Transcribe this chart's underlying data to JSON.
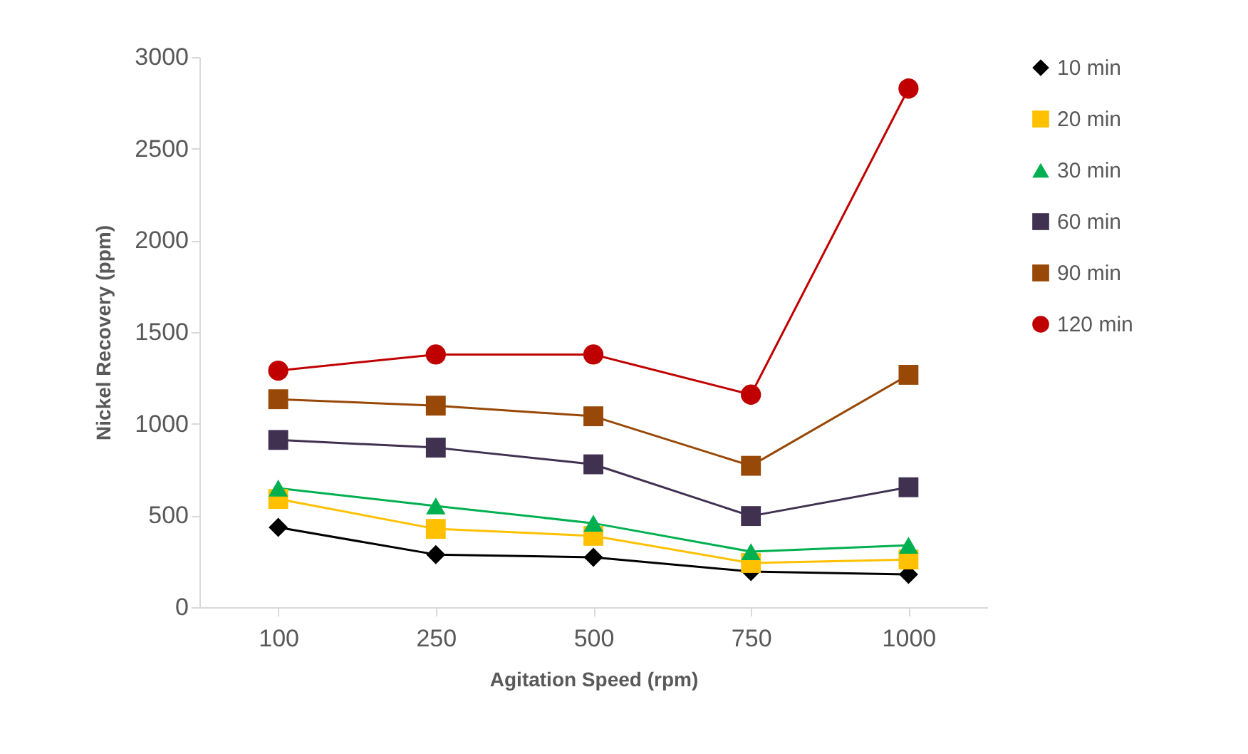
{
  "chart_data": {
    "type": "line",
    "xlabel": "Agitation Speed (rpm)",
    "ylabel": "Nickel Recovery (ppm)",
    "categories": [
      "100",
      "250",
      "500",
      "750",
      "1000"
    ],
    "ylim": [
      0,
      3000
    ],
    "yticks": [
      0,
      500,
      1000,
      1500,
      2000,
      2500,
      3000
    ],
    "grid": false,
    "legend": "right",
    "series": [
      {
        "name": "10 min",
        "color": "#000000",
        "marker": "diamond",
        "values": [
          435,
          287,
          272,
          194,
          179
        ]
      },
      {
        "name": "20 min",
        "color": "#ffc000",
        "marker": "square",
        "values": [
          590,
          427,
          389,
          241,
          260
        ]
      },
      {
        "name": "30 min",
        "color": "#00b050",
        "marker": "triangle",
        "values": [
          649,
          552,
          458,
          303,
          338
        ]
      },
      {
        "name": "60 min",
        "color": "#403151",
        "marker": "square",
        "values": [
          912,
          870,
          779,
          497,
          654
        ]
      },
      {
        "name": "90 min",
        "color": "#984807",
        "marker": "square",
        "values": [
          1134,
          1099,
          1041,
          771,
          1267
        ]
      },
      {
        "name": "120 min",
        "color": "#c00000",
        "marker": "circle",
        "values": [
          1290,
          1378,
          1378,
          1159,
          2828
        ]
      }
    ]
  }
}
